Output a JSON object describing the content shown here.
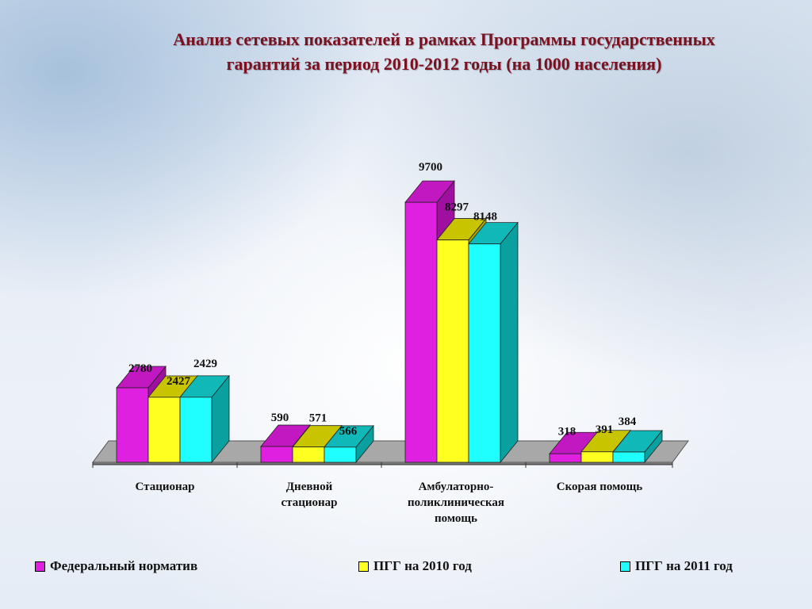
{
  "title": {
    "line1": "Анализ сетевых показателей в рамках Программы государственных",
    "line2": "гарантий за период 2010-2012 годы (на 1000 населения)"
  },
  "chart_data": {
    "type": "bar",
    "categories": [
      [
        "Стационар"
      ],
      [
        "Дневной",
        "стационар"
      ],
      [
        "Амбулаторно-",
        "поликлиническая",
        "помощь"
      ],
      [
        "Скорая помощь"
      ]
    ],
    "series": [
      {
        "name": "Федеральный норматив",
        "values": [
          2780,
          590,
          9700,
          318
        ],
        "color": "#e020e0",
        "top": "#c218c2",
        "side": "#a010a0"
      },
      {
        "name": "ПГГ на 2010 год",
        "values": [
          2427,
          571,
          8297,
          391
        ],
        "color": "#ffff20",
        "top": "#c8c400",
        "side": "#a8a400"
      },
      {
        "name": "ПГГ на 2011 год",
        "values": [
          2429,
          566,
          8148,
          384
        ],
        "color": "#20ffff",
        "top": "#10b8b8",
        "side": "#0aa0a0"
      }
    ],
    "ylim": [
      0,
      10000
    ],
    "grid": false,
    "legend_position": "bottom"
  }
}
